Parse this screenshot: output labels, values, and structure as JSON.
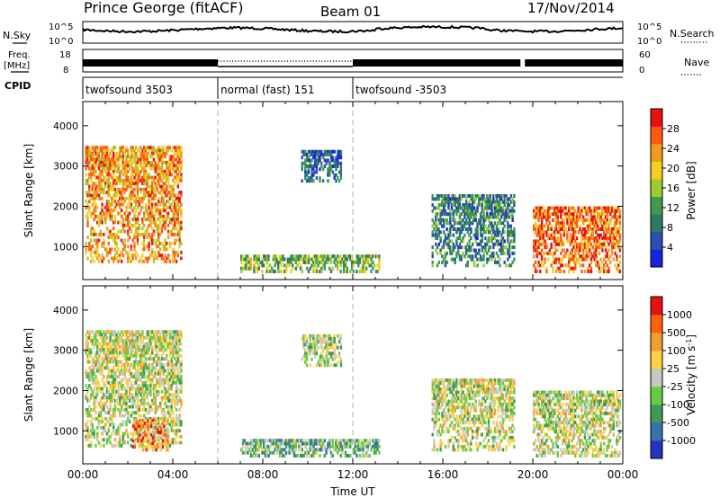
{
  "header": {
    "station": "Prince George (fitACF)",
    "beam": "Beam 01",
    "date": "17/Nov/2014"
  },
  "strip_labels": {
    "nsky": "N.Sky",
    "freq_line1": "Freq.",
    "freq_line2": "[MHz]",
    "cpid": "CPID",
    "nsearch": "N.Search",
    "nave": "Nave",
    "nsky_ticks": [
      "10^5",
      "10^0"
    ],
    "freq_ticks": [
      "18",
      "8"
    ],
    "nave_ticks": [
      "60",
      "0"
    ]
  },
  "cpid_segments": [
    {
      "label": "twofsound 3503",
      "start_h": 0,
      "end_h": 6
    },
    {
      "label": "normal (fast) 151",
      "start_h": 6,
      "end_h": 12
    },
    {
      "label": "twofsound -3503",
      "start_h": 12,
      "end_h": 24
    }
  ],
  "chart_data": [
    {
      "type": "heatmap",
      "name": "power",
      "ylabel": "Slant Range [km]",
      "xlabel": "",
      "xlim_hours": [
        0,
        24
      ],
      "ylim": [
        180,
        4600
      ],
      "y_ticks": [
        "1000",
        "2000",
        "3000",
        "4000"
      ],
      "colorbar_label": "Power [dB]",
      "colorbar_ticks": [
        "4",
        "8",
        "12",
        "16",
        "20",
        "24",
        "28"
      ],
      "colorbar_colors": [
        "#1a22e0",
        "#2a4fb0",
        "#2e7a66",
        "#3f9a4e",
        "#9ccc30",
        "#f0d020",
        "#f09a20",
        "#ff5a10",
        "#e81010"
      ],
      "regions": [
        {
          "t0": 0.1,
          "t1": 4.4,
          "r0": 600,
          "r1": 3500,
          "level": 0.72
        },
        {
          "t0": 9.7,
          "t1": 11.5,
          "r0": 2600,
          "r1": 3400,
          "level": 0.2
        },
        {
          "t0": 7.0,
          "t1": 13.2,
          "r0": 350,
          "r1": 800,
          "level": 0.45
        },
        {
          "t0": 15.5,
          "t1": 19.2,
          "r0": 500,
          "r1": 2300,
          "level": 0.3
        },
        {
          "t0": 20.0,
          "t1": 23.9,
          "r0": 350,
          "r1": 2000,
          "level": 0.8
        }
      ]
    },
    {
      "type": "heatmap",
      "name": "velocity",
      "ylabel": "Slant Range [km]",
      "xlabel": "Time UT",
      "xlim_hours": [
        0,
        24
      ],
      "ylim": [
        180,
        4600
      ],
      "x_ticks": [
        "00:00",
        "04:00",
        "08:00",
        "12:00",
        "16:00",
        "20:00",
        "00:00"
      ],
      "y_ticks": [
        "1000",
        "2000",
        "3000",
        "4000"
      ],
      "colorbar_label": "Velocity [m s^-1]",
      "colorbar_ticks": [
        "1000",
        "500",
        "100",
        "25",
        "-25",
        "-100",
        "-500",
        "-1000"
      ],
      "colorbar_colors": [
        "#2433c0",
        "#3a6fb0",
        "#3f9a55",
        "#66cc44",
        "#c8c8c0",
        "#ffd040",
        "#f0a030",
        "#ff6010",
        "#e81010"
      ],
      "regions": [
        {
          "t0": 0.1,
          "t1": 4.4,
          "r0": 600,
          "r1": 3500,
          "level": 0.5
        },
        {
          "t0": 2.2,
          "t1": 3.8,
          "r0": 500,
          "r1": 1300,
          "level": 0.72
        },
        {
          "t0": 9.7,
          "t1": 11.5,
          "r0": 2600,
          "r1": 3400,
          "level": 0.45
        },
        {
          "t0": 7.0,
          "t1": 13.2,
          "r0": 350,
          "r1": 800,
          "level": 0.36
        },
        {
          "t0": 15.5,
          "t1": 19.2,
          "r0": 500,
          "r1": 2300,
          "level": 0.5
        },
        {
          "t0": 20.0,
          "t1": 23.9,
          "r0": 350,
          "r1": 2000,
          "level": 0.5
        }
      ]
    }
  ]
}
